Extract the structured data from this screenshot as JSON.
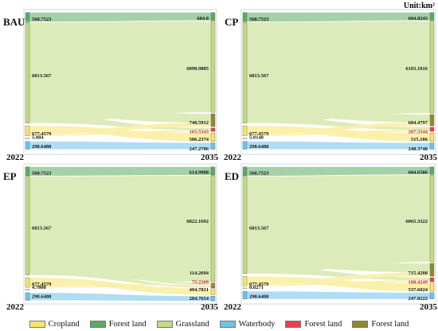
{
  "unit_label": "Unit:km²",
  "colors": {
    "cropland": "#f7e46a",
    "forest": "#5dab62",
    "grassland": "#c3db82",
    "waterbody": "#6cc3ec",
    "forest_red": "#e8424a",
    "forest_olive": "#8f8a2c"
  },
  "legend": [
    {
      "label": "Cropland",
      "color": "#f7e46a"
    },
    {
      "label": "Forest land",
      "color": "#5dab62"
    },
    {
      "label": "Grassland",
      "color": "#c3db82"
    },
    {
      "label": "Waterbody",
      "color": "#6cc3ec"
    },
    {
      "label": "Forest land",
      "color": "#e8424a"
    },
    {
      "label": "Forest land",
      "color": "#8f8a2c"
    }
  ],
  "panels": [
    {
      "id": "bau",
      "label": "BAU",
      "year_left": "2022",
      "year_right": "2035",
      "left_nodes": [
        {
          "key": "forest",
          "value": 568.7523,
          "label": "568.7523"
        },
        {
          "key": "grassland",
          "value": 6813.567,
          "label": "6813.567"
        },
        {
          "key": "cropland",
          "value": 677.4579,
          "label": "677.4579"
        },
        {
          "key": "small",
          "value": 5.004,
          "label": "5.004"
        },
        {
          "key": "waterbody",
          "value": 298.6488,
          "label": "298.6488"
        }
      ],
      "right_nodes": [
        {
          "key": "forest",
          "value": 604.8,
          "label": "604.8"
        },
        {
          "key": "grassland",
          "value": 6090.9885,
          "label": "6090.9885"
        },
        {
          "key": "forest_olive",
          "value": 748.5912,
          "label": "748.5912"
        },
        {
          "key": "forest_red",
          "value": 165.5343,
          "label": "165.5343"
        },
        {
          "key": "cropland",
          "value": 506.2374,
          "label": "506.2374"
        },
        {
          "key": "waterbody",
          "value": 247.2786,
          "label": "247.2786"
        }
      ]
    },
    {
      "id": "cp",
      "label": "CP",
      "year_left": "2022",
      "year_right": "2035",
      "left_nodes": [
        {
          "key": "forest",
          "value": 568.7523,
          "label": "568.7523"
        },
        {
          "key": "grassland",
          "value": 6813.567,
          "label": "6813.567"
        },
        {
          "key": "cropland",
          "value": 677.4579,
          "label": "677.4579"
        },
        {
          "key": "small",
          "value": 5.0148,
          "label": "5.0148"
        },
        {
          "key": "waterbody",
          "value": 298.6488,
          "label": "298.6488"
        }
      ],
      "right_nodes": [
        {
          "key": "forest",
          "value": 604.8243,
          "label": "604.8243"
        },
        {
          "key": "grassland",
          "value": 6103.1016,
          "label": "6103.1016"
        },
        {
          "key": "forest_olive",
          "value": 684.4797,
          "label": "684.4797"
        },
        {
          "key": "forest_red",
          "value": 207.5544,
          "label": "207.5544"
        },
        {
          "key": "cropland",
          "value": 515.106,
          "label": "515.106"
        },
        {
          "key": "waterbody",
          "value": 248.3748,
          "label": "248.3748"
        }
      ]
    },
    {
      "id": "ep",
      "label": "EP",
      "year_left": "2022",
      "year_right": "2035",
      "left_nodes": [
        {
          "key": "forest",
          "value": 568.7523,
          "label": "568.7523"
        },
        {
          "key": "grassland",
          "value": 6813.567,
          "label": "6813.567"
        },
        {
          "key": "cropland",
          "value": 677.4579,
          "label": "677.4579"
        },
        {
          "key": "small",
          "value": 4.7808,
          "label": "4.7808"
        },
        {
          "key": "waterbody",
          "value": 298.6488,
          "label": "298.6488"
        }
      ],
      "right_nodes": [
        {
          "key": "forest",
          "value": 614.9988,
          "label": "614.9988"
        },
        {
          "key": "grassland",
          "value": 6822.1692,
          "label": "6822.1692"
        },
        {
          "key": "forest_olive",
          "value": 114.2694,
          "label": "114.2694"
        },
        {
          "key": "forest_red",
          "value": 75.2209,
          "label": "75.2209"
        },
        {
          "key": "cropland",
          "value": 494.7831,
          "label": "494.7831"
        },
        {
          "key": "waterbody",
          "value": 284.7654,
          "label": "284.7654"
        }
      ]
    },
    {
      "id": "ed",
      "label": "ED",
      "year_left": "2022",
      "year_right": "2035",
      "left_nodes": [
        {
          "key": "forest",
          "value": 568.7523,
          "label": "568.7523"
        },
        {
          "key": "grassland",
          "value": 6813.567,
          "label": "6813.567"
        },
        {
          "key": "cropland",
          "value": 677.4579,
          "label": "677.4579"
        },
        {
          "key": "small",
          "value": 0.8271,
          "label": "0.8271"
        },
        {
          "key": "waterbody",
          "value": 298.6488,
          "label": "298.6488"
        }
      ],
      "right_nodes": [
        {
          "key": "forest",
          "value": 604.6506,
          "label": "604.6506"
        },
        {
          "key": "grassland",
          "value": 6065.3322,
          "label": "6065.3322"
        },
        {
          "key": "forest_olive",
          "value": 715.4208,
          "label": "715.4208"
        },
        {
          "key": "forest_red",
          "value": 188.4249,
          "label": "188.4249"
        },
        {
          "key": "cropland",
          "value": 537.6024,
          "label": "537.6024"
        },
        {
          "key": "waterbody",
          "value": 247.8222,
          "label": "247.8222"
        }
      ]
    }
  ]
}
